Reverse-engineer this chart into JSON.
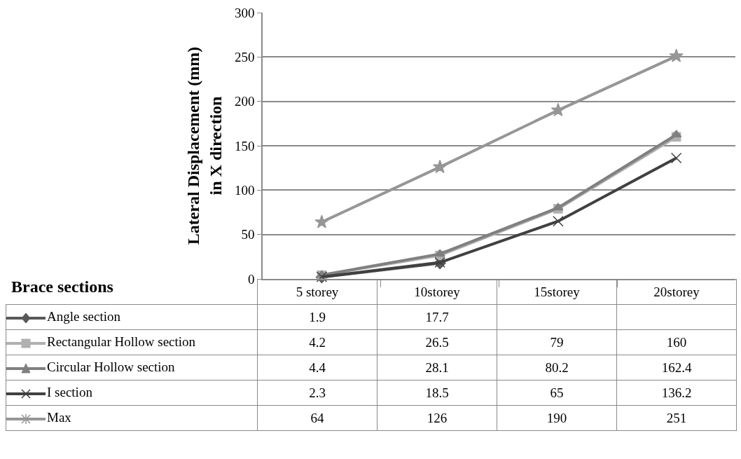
{
  "chart_data": {
    "type": "line",
    "ylabel": "Lateral Displacement (mm)\nin X direction",
    "legend_title": "Brace sections",
    "categories": [
      "5 storey",
      "10storey",
      "15storey",
      "20storey"
    ],
    "series": [
      {
        "name": "Angle section",
        "color": "#595959",
        "marker": "diamond",
        "values": [
          1.9,
          17.7,
          null,
          null
        ]
      },
      {
        "name": "Rectangular Hollow section",
        "color": "#b0b0b0",
        "marker": "square",
        "values": [
          4.2,
          26.5,
          79,
          160
        ]
      },
      {
        "name": "Circular Hollow section",
        "color": "#808080",
        "marker": "triangle",
        "values": [
          4.4,
          28.1,
          80.2,
          162.4
        ]
      },
      {
        "name": "I section",
        "color": "#404040",
        "marker": "cross",
        "values": [
          2.3,
          18.5,
          65,
          136.2
        ]
      },
      {
        "name": "Max",
        "color": "#969696",
        "marker": "star",
        "values": [
          64,
          126,
          190,
          251
        ]
      }
    ],
    "ylim": [
      0,
      300
    ],
    "yticks": [
      0,
      50,
      100,
      150,
      200,
      250,
      300
    ],
    "grid": "y",
    "legend": "bottom left",
    "data_labels": true,
    "line_style": "solid"
  }
}
